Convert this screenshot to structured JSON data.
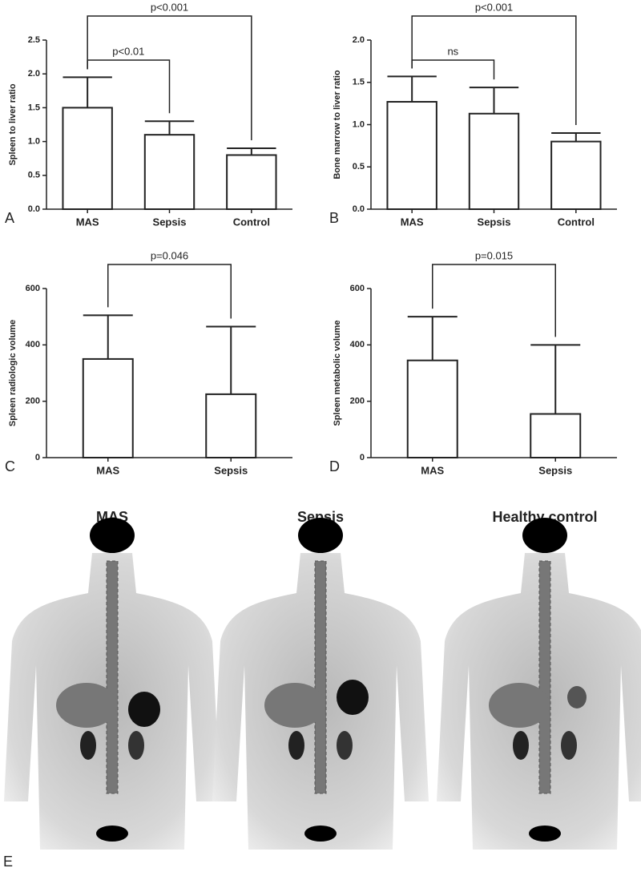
{
  "chart_data": [
    {
      "type": "bar",
      "panel": "A",
      "ylabel": "Spleen to liver ratio",
      "categories": [
        "MAS",
        "Sepsis",
        "Control"
      ],
      "values": [
        1.5,
        1.1,
        0.8
      ],
      "errors": [
        0.45,
        0.2,
        0.1
      ],
      "color": "#ffffff",
      "ylim": [
        0,
        2.5
      ],
      "yticks": [
        {
          "value": 0,
          "label": "0.0"
        },
        0.5,
        {
          "value": 1,
          "label": "1.0"
        },
        1.5,
        {
          "value": 2,
          "label": "2.0"
        },
        2.5
      ],
      "annotations": [
        {
          "text": "p<0.01",
          "from": 0,
          "to": 1
        },
        {
          "text": "p<0.001",
          "from": 0,
          "to": 2
        }
      ]
    },
    {
      "type": "bar",
      "panel": "B",
      "ylabel": "Bone marrow to liver ratio",
      "categories": [
        "MAS",
        "Sepsis",
        "Control"
      ],
      "values": [
        1.27,
        1.13,
        0.8
      ],
      "errors": [
        0.3,
        0.31,
        0.1
      ],
      "color": "#ffffff",
      "ylim": [
        0,
        2
      ],
      "yticks": [
        {
          "value": 0,
          "label": "0.0"
        },
        0.5,
        {
          "value": 1,
          "label": "1.0"
        },
        1.5,
        {
          "value": 2,
          "label": "2.0"
        }
      ],
      "annotations": [
        {
          "text": "ns",
          "from": 0,
          "to": 1
        },
        {
          "text": "p<0.001",
          "from": 0,
          "to": 2
        }
      ]
    },
    {
      "type": "bar",
      "panel": "C",
      "ylabel": "Spleen radiologic volume",
      "categories": [
        "MAS",
        "Sepsis"
      ],
      "values": [
        350,
        225
      ],
      "errors": [
        155,
        240
      ],
      "color": "#ffffff",
      "ylim": [
        0,
        600
      ],
      "yticks": [
        0,
        200,
        400,
        600
      ],
      "annotations": [
        {
          "text": "p=0.046",
          "from": 0,
          "to": 1
        }
      ]
    },
    {
      "type": "bar",
      "panel": "D",
      "ylabel": "Spleen metabolic volume",
      "categories": [
        "MAS",
        "Sepsis"
      ],
      "values": [
        345,
        155
      ],
      "errors": [
        155,
        245
      ],
      "color": "#ffffff",
      "ylim": [
        0,
        600
      ],
      "yticks": [
        0,
        200,
        400,
        600
      ],
      "annotations": [
        {
          "text": "p=0.015",
          "from": 0,
          "to": 1
        }
      ]
    }
  ],
  "images": {
    "panel": "E",
    "labels": [
      "MAS",
      "Sepsis",
      "Healthy control"
    ]
  }
}
